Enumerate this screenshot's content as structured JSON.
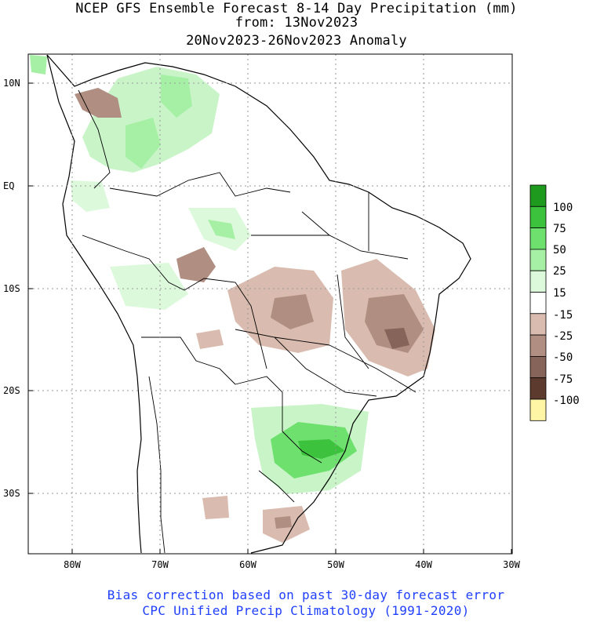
{
  "title": {
    "line1": "NCEP GFS Ensemble Forecast 8-14 Day Precipitation (mm)",
    "line2": "from: 13Nov2023",
    "line3": "20Nov2023-26Nov2023 Anomaly"
  },
  "map": {
    "lat_labels": [
      "10N",
      "EQ",
      "10S",
      "20S",
      "30S"
    ],
    "lon_labels": [
      "80W",
      "70W",
      "60W",
      "50W",
      "40W",
      "30W"
    ],
    "lat_range": [
      -36,
      13
    ],
    "lon_range": [
      -85,
      -30
    ],
    "grid": "dotted"
  },
  "legend": {
    "placement": "right",
    "labels": [
      "100",
      "75",
      "50",
      "25",
      "15",
      "-15",
      "-25",
      "-50",
      "-75",
      "-100"
    ],
    "colors": [
      "#1e9a1e",
      "#3dc23d",
      "#6ee06e",
      "#a6f0a6",
      "#dcf9dc",
      "#ffffff",
      "#d9bcaf",
      "#b08e82",
      "#876459",
      "#5c3a2e",
      "#fff5a5"
    ]
  },
  "footer": {
    "line1": "Bias correction based on past 30-day forecast error",
    "line2": "CPC Unified Precip Climatology (1991-2020)"
  }
}
